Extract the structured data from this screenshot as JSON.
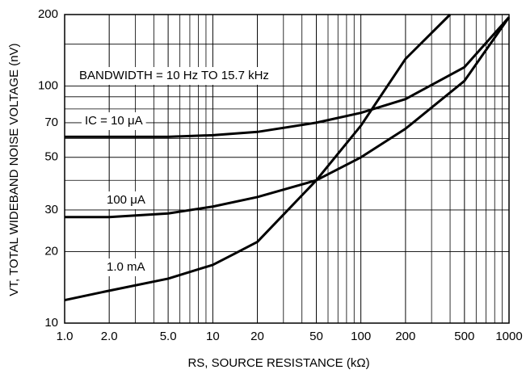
{
  "chart_data": {
    "type": "line",
    "x_label": "RS, SOURCE RESISTANCE (kΩ)",
    "y_label": "VT, TOTAL WIDEBAND NOISE VOLTAGE (nV)",
    "annotation": "BANDWIDTH = 10 Hz TO 15.7 kHz",
    "x_log": true,
    "y_log": true,
    "grid": true,
    "minor_grid": true,
    "xlim": [
      1,
      1000
    ],
    "ylim": [
      10,
      200
    ],
    "xticks": [
      {
        "value": 1,
        "label": "1.0"
      },
      {
        "value": 2,
        "label": "2.0"
      },
      {
        "value": 5,
        "label": "5.0"
      },
      10,
      20,
      50,
      100,
      200,
      500,
      1000
    ],
    "yticks": [
      10,
      20,
      30,
      50,
      70,
      100,
      200
    ],
    "series": [
      {
        "name": "IC = 10 μA",
        "color": "#000000",
        "x": [
          1,
          2,
          5,
          10,
          20,
          50,
          100,
          200,
          500,
          1000
        ],
        "values": [
          61,
          61,
          61,
          62,
          64,
          70,
          77,
          88,
          120,
          195
        ]
      },
      {
        "name": "100 μA",
        "color": "#000000",
        "x": [
          1,
          2,
          5,
          10,
          20,
          50,
          100,
          200,
          500,
          1000
        ],
        "values": [
          28,
          28,
          29,
          31,
          34,
          40,
          50,
          66,
          105,
          195
        ]
      },
      {
        "name": "1.0 mA",
        "color": "#000000",
        "x": [
          1,
          2,
          5,
          10,
          14,
          20,
          50,
          100,
          200,
          400
        ],
        "values": [
          12.5,
          13.7,
          15.4,
          17.6,
          19.6,
          22,
          40,
          68,
          130,
          200
        ]
      }
    ]
  }
}
